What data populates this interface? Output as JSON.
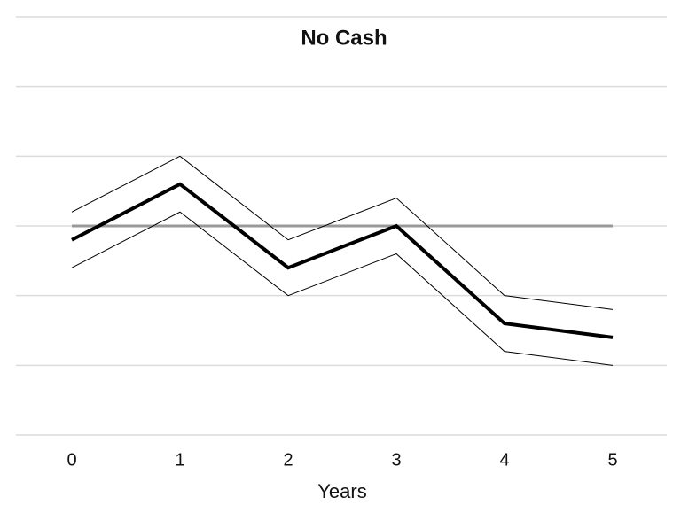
{
  "chart_data": {
    "type": "line",
    "title": "No Cash",
    "xlabel": "Years",
    "x": [
      0,
      1,
      2,
      3,
      4,
      5
    ],
    "series": [
      {
        "color": "#000000",
        "width": 4,
        "values": [
          -0.2,
          0.6,
          -0.6,
          0,
          -1.4,
          -1.6
        ]
      },
      {
        "color": "#000000",
        "width": 1,
        "values": [
          0.2,
          1.0,
          -0.2,
          0.4,
          -1.0,
          -1.2
        ]
      },
      {
        "color": "#000000",
        "width": 1,
        "values": [
          -0.6,
          0.2,
          -1.0,
          -0.4,
          -1.8,
          -2.0
        ]
      }
    ],
    "hline": 0,
    "hline_color": "#999999",
    "xlim": [
      -0.5,
      5.5
    ],
    "xticks": [
      0,
      1,
      2,
      3,
      4,
      5
    ],
    "ylim": [
      -3,
      3
    ],
    "yticks": [
      -3,
      -2,
      -1,
      0,
      1,
      2,
      3
    ],
    "grid": true
  }
}
